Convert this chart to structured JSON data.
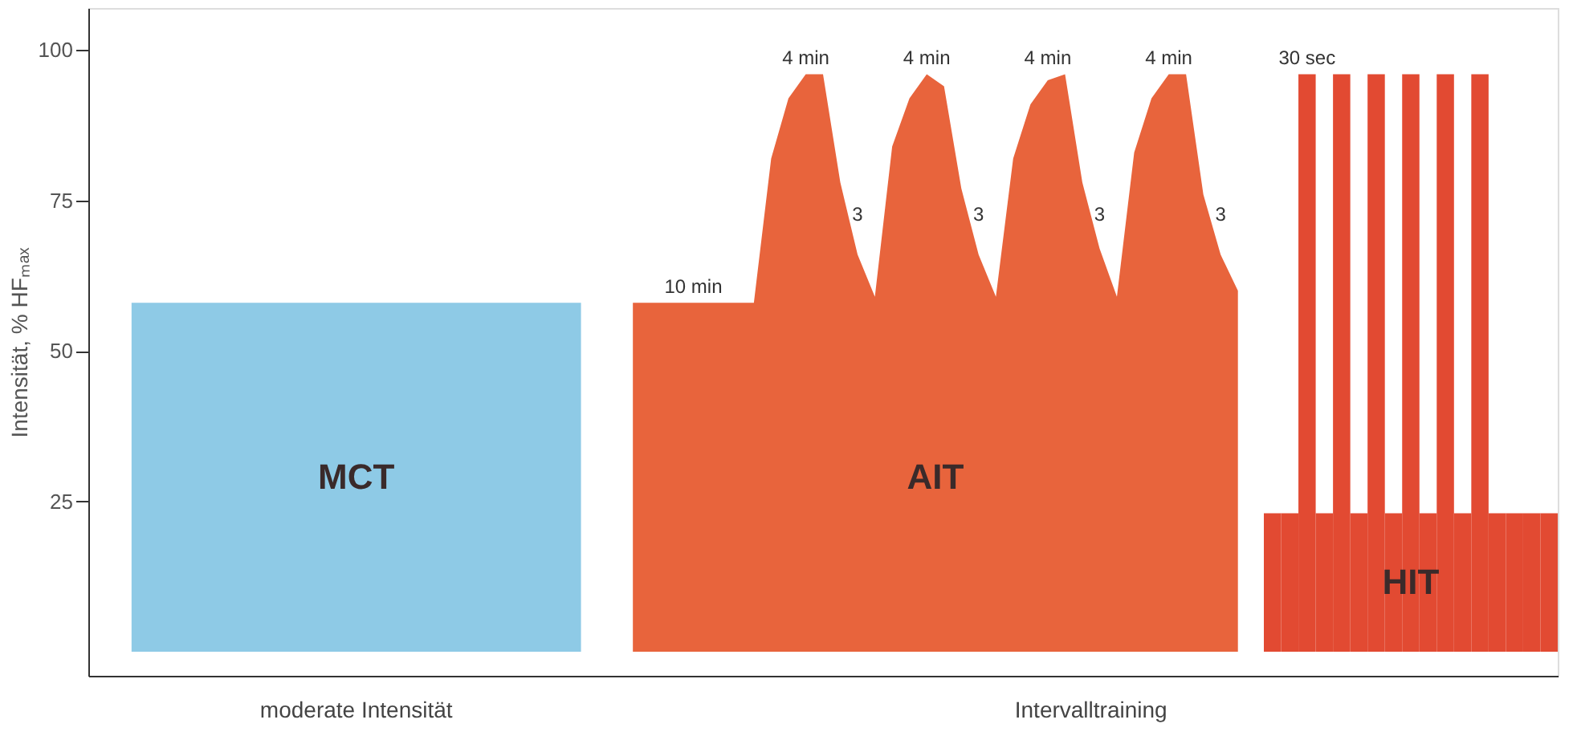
{
  "chart_data": {
    "type": "area",
    "ylabel": "Intensität, % HFₘₐₓ",
    "categories": [
      null,
      null,
      null,
      null,
      null,
      null,
      null,
      null,
      null,
      null,
      null,
      null,
      null,
      null,
      null,
      null,
      null,
      null,
      null,
      null,
      null,
      null,
      null,
      null,
      null,
      null,
      null,
      null,
      null,
      null,
      null,
      null,
      null,
      null,
      null,
      null,
      null,
      null,
      null,
      null,
      null,
      null,
      null,
      null,
      null,
      null,
      null,
      null,
      null,
      null,
      null,
      null,
      null,
      null,
      null,
      null,
      null,
      null,
      null,
      null,
      null,
      null,
      null,
      null,
      null,
      null,
      null,
      null,
      null,
      null,
      null,
      null,
      null,
      null,
      null,
      null,
      null,
      null,
      null,
      null,
      null,
      null,
      null,
      null,
      null
    ],
    "series": [
      {
        "name": "MCT",
        "color": "#8ecae6",
        "values": [
          null,
          null,
          58,
          58,
          58,
          58,
          58,
          58,
          58,
          58,
          58,
          58,
          58,
          58,
          58,
          58,
          58,
          58,
          58,
          58,
          58,
          58,
          58,
          58,
          58,
          58,
          58,
          58,
          58,
          null,
          null,
          null,
          null,
          null,
          null,
          null,
          null,
          null,
          null,
          null,
          null,
          null,
          null,
          null,
          null,
          null,
          null,
          null,
          null,
          null,
          null,
          null,
          null,
          null,
          null,
          null,
          null,
          null,
          null,
          null,
          null,
          null,
          null,
          null,
          null,
          null,
          null,
          null,
          null,
          null,
          null,
          null,
          null,
          null,
          null,
          null,
          null,
          null,
          null,
          null,
          null,
          null,
          null,
          null,
          null
        ]
      },
      {
        "name": "AIT",
        "color": "#e8643c",
        "values": [
          null,
          null,
          null,
          null,
          null,
          null,
          null,
          null,
          null,
          null,
          null,
          null,
          null,
          null,
          null,
          null,
          null,
          null,
          null,
          null,
          null,
          null,
          null,
          null,
          null,
          null,
          null,
          null,
          null,
          null,
          null,
          58,
          58,
          58,
          58,
          58,
          58,
          58,
          58,
          82,
          92,
          96,
          96,
          78,
          66,
          59,
          84,
          92,
          96,
          94,
          77,
          66,
          59,
          82,
          91,
          95,
          96,
          78,
          67,
          59,
          83,
          92,
          96,
          96,
          76,
          66,
          60,
          null,
          null,
          null,
          null,
          null,
          null,
          null,
          null,
          null,
          null,
          null,
          null,
          null,
          null,
          null,
          null,
          null,
          null
        ]
      },
      {
        "name": "HIT",
        "type": "bar",
        "color": "#e24a32",
        "values": [
          null,
          null,
          null,
          null,
          null,
          null,
          null,
          null,
          null,
          null,
          null,
          null,
          null,
          null,
          null,
          null,
          null,
          null,
          null,
          null,
          null,
          null,
          null,
          null,
          null,
          null,
          null,
          null,
          null,
          null,
          null,
          null,
          null,
          null,
          null,
          null,
          null,
          null,
          null,
          null,
          null,
          null,
          null,
          null,
          null,
          null,
          null,
          null,
          null,
          null,
          null,
          null,
          null,
          null,
          null,
          null,
          null,
          null,
          null,
          null,
          null,
          null,
          null,
          null,
          null,
          null,
          null,
          null,
          23,
          23,
          96,
          23,
          96,
          23,
          96,
          23,
          96,
          23,
          96,
          23,
          96,
          23,
          23,
          23,
          23
        ]
      }
    ],
    "ylim": [
      -4,
      107
    ],
    "yticks": [
      25,
      50,
      75,
      100
    ],
    "grid": false,
    "tick_labels": "y",
    "annotations": [
      {
        "text": "10 min",
        "y": 58
      },
      {
        "text": "4 min",
        "y": 96
      },
      {
        "text": "4 min",
        "y": 96
      },
      {
        "text": "4 min",
        "y": 96
      },
      {
        "text": "4 min",
        "y": 96
      },
      {
        "text": "30 sec",
        "y": 96
      },
      {
        "text": "3",
        "y": 70
      },
      {
        "text": "3",
        "y": 70
      },
      {
        "text": "3",
        "y": 70
      },
      {
        "text": "3",
        "y": 70
      },
      "moderate Intensität",
      "Intervalltraining"
    ]
  }
}
